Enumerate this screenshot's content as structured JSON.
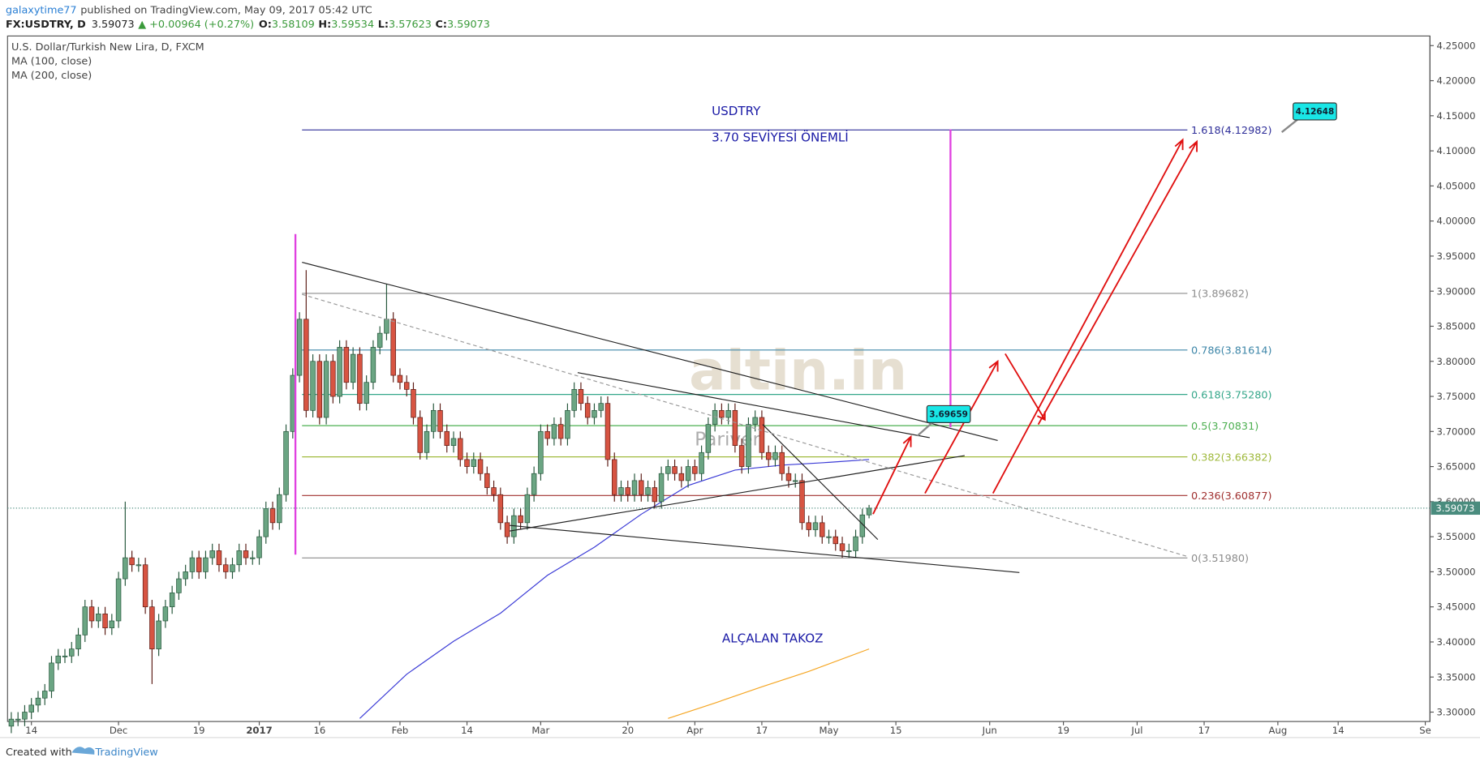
{
  "header": {
    "author": "galaxytime77",
    "published": "published on TradingView.com, May 09, 2017 05:42 UTC",
    "symbol": "FX:USDTRY, D",
    "change": "▲ +0.00964 (+0.27%)",
    "ohlc_labels": [
      "O:",
      "H:",
      "L:",
      "C:"
    ]
  },
  "footer": {
    "created": "Created with",
    "brand": "TradingView"
  },
  "chart_data": {
    "type": "candlestick",
    "title": "U.S. Dollar/Turkish New Lira, D, FXCM",
    "up_color": "#6ba583",
    "down_color": "#d75442",
    "xlim": [
      -0.56,
      211.7
    ],
    "ylim": [
      3.2866,
      4.2637
    ],
    "xticks": [
      {
        "value": 3,
        "label": "14"
      },
      {
        "value": 16,
        "label": "Dec"
      },
      {
        "value": 28,
        "label": "19"
      },
      {
        "value": 37,
        "label": "2017"
      },
      {
        "value": 46,
        "label": "16"
      },
      {
        "value": 58,
        "label": "Feb"
      },
      {
        "value": 68,
        "label": "14"
      },
      {
        "value": 79,
        "label": "Mar"
      },
      {
        "value": 92,
        "label": "20"
      },
      {
        "value": 102,
        "label": "Apr"
      },
      {
        "value": 112,
        "label": "17"
      },
      {
        "value": 122,
        "label": "May"
      },
      {
        "value": 132,
        "label": "15"
      },
      {
        "value": 146,
        "label": "Jun"
      },
      {
        "value": 157,
        "label": "19"
      },
      {
        "value": 168,
        "label": "Jul"
      },
      {
        "value": 178,
        "label": "17"
      },
      {
        "value": 189,
        "label": "Aug"
      },
      {
        "value": 198,
        "label": "14"
      },
      {
        "value": 211,
        "label": "Se"
      }
    ],
    "yticks": [
      {
        "value": 3.3,
        "label": "3.30000"
      },
      {
        "value": 3.35,
        "label": "3.35000"
      },
      {
        "value": 3.4,
        "label": "3.40000"
      },
      {
        "value": 3.45,
        "label": "3.45000"
      },
      {
        "value": 3.5,
        "label": "3.50000"
      },
      {
        "value": 3.55,
        "label": "3.55000"
      },
      {
        "value": 3.6,
        "label": "3.60000"
      },
      {
        "value": 3.65,
        "label": "3.65000"
      },
      {
        "value": 3.7,
        "label": "3.70000"
      },
      {
        "value": 3.75,
        "label": "3.75000"
      },
      {
        "value": 3.8,
        "label": "3.80000"
      },
      {
        "value": 3.85,
        "label": "3.85000"
      },
      {
        "value": 3.9,
        "label": "3.90000"
      },
      {
        "value": 3.95,
        "label": "3.95000"
      },
      {
        "value": 4.0,
        "label": "4.00000"
      },
      {
        "value": 4.05,
        "label": "4.05000"
      },
      {
        "value": 4.1,
        "label": "4.10000"
      },
      {
        "value": 4.15,
        "label": "4.15000"
      },
      {
        "value": 4.2,
        "label": "4.20000"
      },
      {
        "value": 4.25,
        "label": "4.25000"
      }
    ],
    "x": [
      0,
      1,
      2,
      3,
      4,
      5,
      6,
      7,
      8,
      9,
      10,
      11,
      12,
      13,
      14,
      15,
      16,
      17,
      18,
      19,
      20,
      21,
      22,
      23,
      24,
      25,
      26,
      27,
      28,
      29,
      30,
      31,
      32,
      33,
      34,
      35,
      36,
      37,
      38,
      39,
      40,
      41,
      42,
      43,
      44,
      45,
      46,
      47,
      48,
      49,
      50,
      51,
      52,
      53,
      54,
      55,
      56,
      57,
      58,
      59,
      60,
      61,
      62,
      63,
      64,
      65,
      66,
      67,
      68,
      69,
      70,
      71,
      72,
      73,
      74,
      75,
      76,
      77,
      78,
      79,
      80,
      81,
      82,
      83,
      84,
      85,
      86,
      87,
      88,
      89,
      90,
      91,
      92,
      93,
      94,
      95,
      96,
      97,
      98,
      99,
      100,
      101,
      102,
      103,
      104,
      105,
      106,
      107,
      108,
      109,
      110,
      111,
      112,
      113,
      114,
      115,
      116,
      117,
      118,
      119,
      120,
      121,
      122,
      123,
      124,
      125,
      126,
      127,
      128
    ],
    "open": [
      3.28,
      3.29,
      3.29,
      3.3,
      3.31,
      3.32,
      3.33,
      3.37,
      3.38,
      3.38,
      3.39,
      3.41,
      3.45,
      3.43,
      3.44,
      3.42,
      3.43,
      3.49,
      3.52,
      3.51,
      3.51,
      3.45,
      3.39,
      3.43,
      3.45,
      3.47,
      3.49,
      3.5,
      3.52,
      3.5,
      3.52,
      3.53,
      3.51,
      3.5,
      3.51,
      3.53,
      3.52,
      3.52,
      3.55,
      3.59,
      3.57,
      3.61,
      3.7,
      3.78,
      3.86,
      3.73,
      3.8,
      3.72,
      3.8,
      3.75,
      3.82,
      3.77,
      3.81,
      3.74,
      3.77,
      3.82,
      3.84,
      3.86,
      3.78,
      3.77,
      3.76,
      3.72,
      3.67,
      3.7,
      3.73,
      3.7,
      3.68,
      3.69,
      3.66,
      3.65,
      3.66,
      3.64,
      3.62,
      3.61,
      3.57,
      3.55,
      3.58,
      3.57,
      3.61,
      3.64,
      3.7,
      3.69,
      3.71,
      3.69,
      3.73,
      3.76,
      3.74,
      3.72,
      3.73,
      3.74,
      3.66,
      3.61,
      3.62,
      3.61,
      3.63,
      3.61,
      3.62,
      3.6,
      3.64,
      3.65,
      3.64,
      3.63,
      3.65,
      3.64,
      3.67,
      3.71,
      3.73,
      3.72,
      3.73,
      3.68,
      3.65,
      3.71,
      3.72,
      3.67,
      3.66,
      3.67,
      3.64,
      3.63,
      3.63,
      3.57,
      3.56,
      3.57,
      3.55,
      3.55,
      3.54,
      3.53,
      3.53,
      3.55,
      3.58109
    ],
    "high": [
      3.3,
      3.3,
      3.31,
      3.32,
      3.33,
      3.34,
      3.38,
      3.39,
      3.39,
      3.4,
      3.42,
      3.46,
      3.46,
      3.45,
      3.45,
      3.44,
      3.5,
      3.6,
      3.53,
      3.52,
      3.52,
      3.46,
      3.44,
      3.46,
      3.48,
      3.5,
      3.51,
      3.53,
      3.53,
      3.53,
      3.54,
      3.54,
      3.52,
      3.52,
      3.54,
      3.54,
      3.53,
      3.56,
      3.6,
      3.6,
      3.62,
      3.71,
      3.79,
      3.87,
      3.93,
      3.81,
      3.81,
      3.81,
      3.81,
      3.83,
      3.83,
      3.82,
      3.82,
      3.78,
      3.83,
      3.85,
      3.91,
      3.87,
      3.79,
      3.78,
      3.77,
      3.73,
      3.71,
      3.74,
      3.74,
      3.71,
      3.7,
      3.7,
      3.67,
      3.67,
      3.67,
      3.65,
      3.63,
      3.62,
      3.58,
      3.59,
      3.59,
      3.62,
      3.65,
      3.71,
      3.71,
      3.72,
      3.72,
      3.74,
      3.77,
      3.77,
      3.75,
      3.74,
      3.75,
      3.75,
      3.67,
      3.63,
      3.63,
      3.64,
      3.64,
      3.63,
      3.63,
      3.65,
      3.66,
      3.66,
      3.65,
      3.66,
      3.66,
      3.68,
      3.72,
      3.74,
      3.74,
      3.74,
      3.74,
      3.69,
      3.72,
      3.73,
      3.73,
      3.68,
      3.68,
      3.68,
      3.65,
      3.64,
      3.64,
      3.58,
      3.58,
      3.58,
      3.56,
      3.56,
      3.55,
      3.54,
      3.56,
      3.59,
      3.59534
    ],
    "low": [
      3.27,
      3.28,
      3.28,
      3.29,
      3.3,
      3.31,
      3.32,
      3.36,
      3.37,
      3.37,
      3.38,
      3.4,
      3.42,
      3.42,
      3.41,
      3.41,
      3.42,
      3.48,
      3.5,
      3.5,
      3.44,
      3.34,
      3.38,
      3.42,
      3.44,
      3.46,
      3.48,
      3.49,
      3.49,
      3.49,
      3.51,
      3.5,
      3.49,
      3.49,
      3.5,
      3.51,
      3.51,
      3.51,
      3.54,
      3.56,
      3.56,
      3.6,
      3.69,
      3.77,
      3.72,
      3.72,
      3.71,
      3.71,
      3.74,
      3.74,
      3.76,
      3.76,
      3.73,
      3.73,
      3.76,
      3.81,
      3.83,
      3.77,
      3.76,
      3.75,
      3.71,
      3.66,
      3.66,
      3.69,
      3.69,
      3.67,
      3.67,
      3.65,
      3.64,
      3.64,
      3.63,
      3.61,
      3.6,
      3.56,
      3.54,
      3.54,
      3.56,
      3.56,
      3.6,
      3.63,
      3.68,
      3.68,
      3.68,
      3.68,
      3.72,
      3.73,
      3.71,
      3.71,
      3.72,
      3.65,
      3.6,
      3.6,
      3.6,
      3.6,
      3.6,
      3.6,
      3.59,
      3.59,
      3.63,
      3.63,
      3.62,
      3.62,
      3.63,
      3.63,
      3.66,
      3.7,
      3.71,
      3.71,
      3.67,
      3.64,
      3.64,
      3.7,
      3.66,
      3.65,
      3.65,
      3.63,
      3.62,
      3.62,
      3.56,
      3.55,
      3.55,
      3.54,
      3.54,
      3.53,
      3.52,
      3.52,
      3.52,
      3.54,
      3.57623
    ],
    "close": [
      3.29,
      3.29,
      3.3,
      3.31,
      3.32,
      3.33,
      3.37,
      3.38,
      3.38,
      3.39,
      3.41,
      3.45,
      3.43,
      3.44,
      3.42,
      3.43,
      3.49,
      3.52,
      3.51,
      3.51,
      3.45,
      3.39,
      3.43,
      3.45,
      3.47,
      3.49,
      3.5,
      3.52,
      3.5,
      3.52,
      3.53,
      3.51,
      3.5,
      3.51,
      3.53,
      3.52,
      3.52,
      3.55,
      3.59,
      3.57,
      3.61,
      3.7,
      3.78,
      3.86,
      3.73,
      3.8,
      3.72,
      3.8,
      3.75,
      3.82,
      3.77,
      3.81,
      3.74,
      3.77,
      3.82,
      3.84,
      3.86,
      3.78,
      3.77,
      3.76,
      3.72,
      3.67,
      3.7,
      3.73,
      3.7,
      3.68,
      3.69,
      3.66,
      3.65,
      3.66,
      3.64,
      3.62,
      3.61,
      3.57,
      3.55,
      3.58,
      3.57,
      3.61,
      3.64,
      3.7,
      3.69,
      3.71,
      3.69,
      3.73,
      3.76,
      3.74,
      3.72,
      3.73,
      3.74,
      3.66,
      3.61,
      3.62,
      3.61,
      3.63,
      3.61,
      3.62,
      3.6,
      3.64,
      3.65,
      3.64,
      3.63,
      3.65,
      3.64,
      3.67,
      3.71,
      3.73,
      3.72,
      3.73,
      3.68,
      3.65,
      3.71,
      3.72,
      3.67,
      3.66,
      3.67,
      3.64,
      3.63,
      3.63,
      3.57,
      3.56,
      3.57,
      3.55,
      3.55,
      3.54,
      3.53,
      3.53,
      3.55,
      3.58109,
      3.59073
    ],
    "series": [
      {
        "name": "MA (100, close)",
        "color": "#3a3ad6",
        "x": [
          52,
          59,
          66,
          73,
          80,
          87,
          94,
          101,
          108,
          115,
          122,
          128
        ],
        "values": [
          3.291,
          3.354,
          3.401,
          3.441,
          3.495,
          3.535,
          3.582,
          3.623,
          3.645,
          3.652,
          3.656,
          3.66
        ]
      },
      {
        "name": "MA (200, close)",
        "color": "#f5a623",
        "x": [
          98,
          105,
          112,
          119,
          128
        ],
        "values": [
          3.291,
          3.313,
          3.336,
          3.358,
          3.39
        ]
      }
    ],
    "fib_levels": [
      {
        "value": 3.5198,
        "label": "0(3.51980)",
        "color": "#8c8c8c"
      },
      {
        "value": 3.60877,
        "label": "0.236(3.60877)",
        "color": "#a0302f"
      },
      {
        "value": 3.66382,
        "label": "0.382(3.66382)",
        "color": "#9fb93c"
      },
      {
        "value": 3.70831,
        "label": "0.5(3.70831)",
        "color": "#4caf50"
      },
      {
        "value": 3.7528,
        "label": "0.618(3.75280)",
        "color": "#35a78a"
      },
      {
        "value": 3.81614,
        "label": "0.786(3.81614)",
        "color": "#3d86a8"
      },
      {
        "value": 3.89682,
        "label": "1(3.89682)",
        "color": "#8c8c8c"
      },
      {
        "value": 4.12982,
        "label": "1.618(4.12982)",
        "color": "#30309a"
      }
    ],
    "annotations": [
      "USDTRY",
      "3.70 SEVİYESİ ÖNEMLİ",
      "ALÇALAN TAKOZ",
      "4.12648",
      "3.69659"
    ],
    "watermark": [
      "altin.in",
      "Pariver"
    ]
  }
}
